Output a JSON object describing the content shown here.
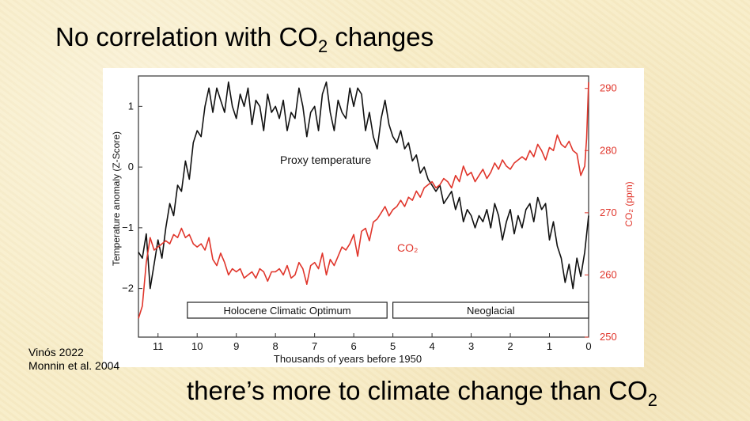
{
  "slide": {
    "title_main": "No correlation with CO",
    "title_sub": "2",
    "title_tail": " changes",
    "bottom_main": "there’s more to climate change than CO",
    "bottom_sub": "2",
    "credits": [
      "Vinós 2022",
      "Monnin et al. 2004"
    ]
  },
  "chart_data": {
    "type": "line",
    "xlabel": "Thousands of years before 1950",
    "xlim": [
      11.5,
      0
    ],
    "x_ticks": [
      11,
      10,
      9,
      8,
      7,
      6,
      5,
      4,
      3,
      2,
      1,
      0
    ],
    "x_tick_labels": [
      "11",
      "10",
      "9",
      "8",
      "7",
      "6",
      "5",
      "4",
      "3",
      "2",
      "1",
      "0"
    ],
    "ylabel_left": "Temperature anomaly (Z-Score)",
    "ylim_left": [
      -2.8,
      1.5
    ],
    "y_left_ticks": [
      1,
      0,
      -1,
      -2
    ],
    "y_left_tick_labels": [
      "1",
      "0",
      "−1",
      "−2"
    ],
    "ylabel_right": "CO₂ (ppm)",
    "ylim_right": [
      250,
      292
    ],
    "y_right_ticks": [
      290,
      280,
      270,
      260,
      250
    ],
    "y_right_tick_labels": [
      "290",
      "280",
      "270",
      "260",
      "250"
    ],
    "periods": [
      {
        "label": "Holocene Climatic Optimum",
        "start": 10.25,
        "end": 5.15
      },
      {
        "label": "Neoglacial",
        "start": 5.0,
        "end": 0.0
      }
    ],
    "series": [
      {
        "name": "Proxy temperature",
        "label": "Proxy temperature",
        "axis": "left",
        "color": "#111111",
        "x": [
          11.5,
          11.4,
          11.3,
          11.2,
          11.1,
          11.0,
          10.9,
          10.8,
          10.7,
          10.6,
          10.5,
          10.4,
          10.3,
          10.2,
          10.1,
          10.0,
          9.9,
          9.8,
          9.7,
          9.6,
          9.5,
          9.4,
          9.3,
          9.2,
          9.1,
          9.0,
          8.9,
          8.8,
          8.7,
          8.6,
          8.5,
          8.4,
          8.3,
          8.2,
          8.1,
          8.0,
          7.9,
          7.8,
          7.7,
          7.6,
          7.5,
          7.4,
          7.3,
          7.2,
          7.1,
          7.0,
          6.9,
          6.8,
          6.7,
          6.6,
          6.5,
          6.4,
          6.3,
          6.2,
          6.1,
          6.0,
          5.9,
          5.8,
          5.7,
          5.6,
          5.5,
          5.4,
          5.3,
          5.2,
          5.1,
          5.0,
          4.9,
          4.8,
          4.7,
          4.6,
          4.5,
          4.4,
          4.3,
          4.2,
          4.1,
          4.0,
          3.9,
          3.8,
          3.7,
          3.6,
          3.5,
          3.4,
          3.3,
          3.2,
          3.1,
          3.0,
          2.9,
          2.8,
          2.7,
          2.6,
          2.5,
          2.4,
          2.3,
          2.2,
          2.1,
          2.0,
          1.9,
          1.8,
          1.7,
          1.6,
          1.5,
          1.4,
          1.3,
          1.2,
          1.1,
          1.0,
          0.9,
          0.8,
          0.7,
          0.6,
          0.5,
          0.4,
          0.3,
          0.2,
          0.1,
          0.0
        ],
        "values": [
          -1.4,
          -1.5,
          -1.1,
          -2.0,
          -1.6,
          -1.2,
          -1.5,
          -1.0,
          -0.6,
          -0.8,
          -0.3,
          -0.4,
          0.1,
          -0.2,
          0.4,
          0.6,
          0.5,
          1.0,
          1.3,
          0.9,
          1.3,
          1.1,
          0.9,
          1.4,
          1.0,
          0.8,
          1.2,
          1.0,
          1.3,
          0.7,
          1.1,
          1.0,
          0.6,
          1.2,
          0.9,
          1.0,
          0.8,
          1.1,
          0.6,
          0.9,
          0.8,
          1.3,
          1.0,
          0.5,
          0.9,
          1.0,
          0.6,
          1.2,
          1.4,
          0.9,
          0.6,
          1.1,
          0.9,
          0.8,
          1.3,
          1.0,
          1.3,
          1.2,
          0.6,
          0.9,
          0.5,
          0.3,
          0.8,
          1.1,
          0.7,
          0.5,
          0.4,
          0.6,
          0.3,
          0.4,
          0.1,
          0.2,
          -0.1,
          0.0,
          -0.2,
          -0.3,
          -0.4,
          -0.3,
          -0.6,
          -0.5,
          -0.4,
          -0.7,
          -0.5,
          -0.9,
          -0.7,
          -0.8,
          -1.0,
          -0.8,
          -0.9,
          -0.7,
          -1.0,
          -0.6,
          -0.8,
          -1.2,
          -0.9,
          -0.7,
          -1.1,
          -0.8,
          -1.0,
          -0.7,
          -0.6,
          -0.9,
          -0.5,
          -0.7,
          -0.6,
          -1.2,
          -0.9,
          -1.3,
          -1.5,
          -1.9,
          -1.6,
          -2.0,
          -1.5,
          -1.8,
          -1.4,
          -0.8
        ]
      },
      {
        "name": "CO2",
        "label": "CO₂",
        "axis": "right",
        "color": "#e0352b",
        "x": [
          11.5,
          11.4,
          11.3,
          11.2,
          11.1,
          11.0,
          10.9,
          10.8,
          10.7,
          10.6,
          10.5,
          10.4,
          10.3,
          10.2,
          10.1,
          10.0,
          9.9,
          9.8,
          9.7,
          9.6,
          9.5,
          9.4,
          9.3,
          9.2,
          9.1,
          9.0,
          8.9,
          8.8,
          8.7,
          8.6,
          8.5,
          8.4,
          8.3,
          8.2,
          8.1,
          8.0,
          7.9,
          7.8,
          7.7,
          7.6,
          7.5,
          7.4,
          7.3,
          7.2,
          7.1,
          7.0,
          6.9,
          6.8,
          6.7,
          6.6,
          6.5,
          6.4,
          6.3,
          6.2,
          6.1,
          6.0,
          5.9,
          5.8,
          5.7,
          5.6,
          5.5,
          5.4,
          5.3,
          5.2,
          5.1,
          5.0,
          4.9,
          4.8,
          4.7,
          4.6,
          4.5,
          4.4,
          4.3,
          4.2,
          4.1,
          4.0,
          3.9,
          3.8,
          3.7,
          3.6,
          3.5,
          3.4,
          3.3,
          3.2,
          3.1,
          3.0,
          2.9,
          2.8,
          2.7,
          2.6,
          2.5,
          2.4,
          2.3,
          2.2,
          2.1,
          2.0,
          1.9,
          1.8,
          1.7,
          1.6,
          1.5,
          1.4,
          1.3,
          1.2,
          1.1,
          1.0,
          0.9,
          0.8,
          0.7,
          0.6,
          0.5,
          0.4,
          0.3,
          0.2,
          0.1,
          0.05,
          0.0
        ],
        "values": [
          253.0,
          255.0,
          262.0,
          266.0,
          264.0,
          264.5,
          265.0,
          265.5,
          265.0,
          266.5,
          266.0,
          267.5,
          266.0,
          266.5,
          265.0,
          264.5,
          265.0,
          264.0,
          266.0,
          262.5,
          261.5,
          263.5,
          262.0,
          260.0,
          261.0,
          260.5,
          261.0,
          259.5,
          260.0,
          260.5,
          259.5,
          261.0,
          260.5,
          259.0,
          260.5,
          260.5,
          261.0,
          260.0,
          261.5,
          259.5,
          260.0,
          262.0,
          261.0,
          258.5,
          261.5,
          262.0,
          261.0,
          263.5,
          260.0,
          262.5,
          261.5,
          263.0,
          264.5,
          264.0,
          265.0,
          266.5,
          263.0,
          267.0,
          267.5,
          265.5,
          268.5,
          269.0,
          270.0,
          271.0,
          269.5,
          270.5,
          271.0,
          272.0,
          271.0,
          272.5,
          272.0,
          273.5,
          272.5,
          274.0,
          274.5,
          275.0,
          274.0,
          274.5,
          275.5,
          275.0,
          274.0,
          276.0,
          275.0,
          277.5,
          276.0,
          276.5,
          275.0,
          276.0,
          277.0,
          275.5,
          276.5,
          278.0,
          277.0,
          278.5,
          277.5,
          277.0,
          278.0,
          278.5,
          279.0,
          278.5,
          280.0,
          279.0,
          281.0,
          280.0,
          278.5,
          280.5,
          280.0,
          282.5,
          281.0,
          280.5,
          281.5,
          280.0,
          279.5,
          276.0,
          277.5,
          282.0,
          291.0
        ]
      }
    ]
  }
}
